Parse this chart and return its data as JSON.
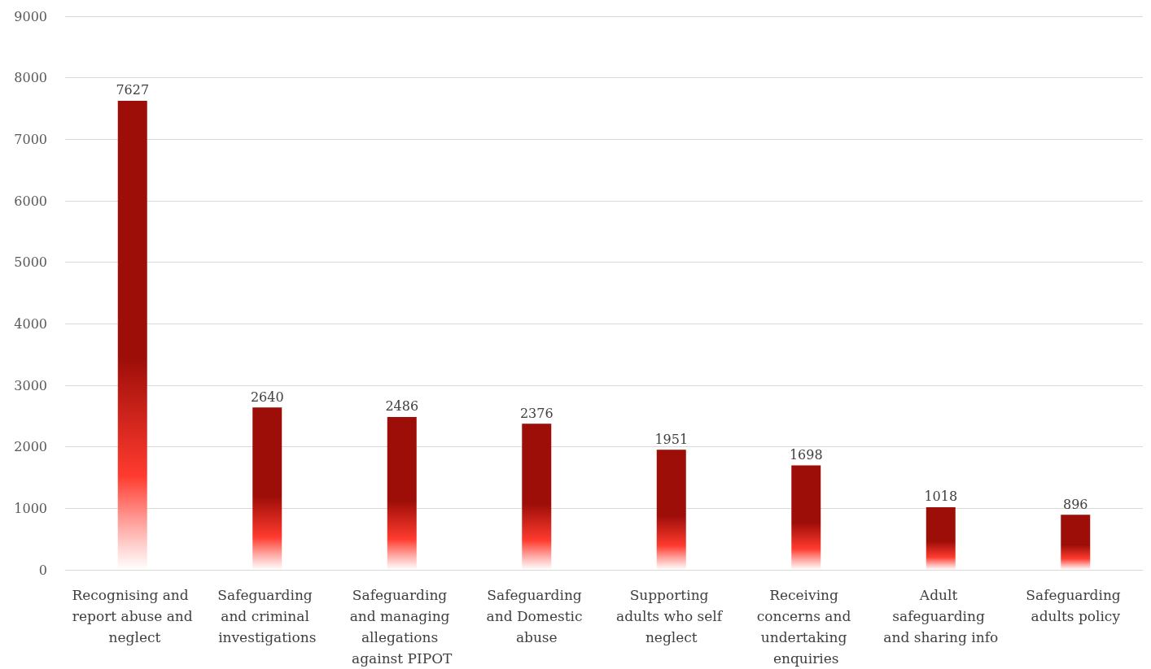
{
  "chart_data": {
    "type": "bar",
    "categories": [
      "Recognising and report abuse and neglect",
      "Safeguarding and criminal investigations",
      "Safeguarding and managing allegations against PIPOT",
      "Safeguarding and Domestic abuse",
      "Supporting adults who self neglect",
      "Receiving concerns and undertaking enquiries",
      "Adult safeguarding and sharing info",
      "Safeguarding adults policy"
    ],
    "values": [
      7627,
      2640,
      2486,
      2376,
      1951,
      1698,
      1018,
      896
    ],
    "color": "#9e0e08",
    "ylim": [
      0,
      9000
    ],
    "yticks": [
      0,
      1000,
      2000,
      3000,
      4000,
      5000,
      6000,
      7000,
      8000,
      9000
    ],
    "grid": "y",
    "data_labels": true
  }
}
